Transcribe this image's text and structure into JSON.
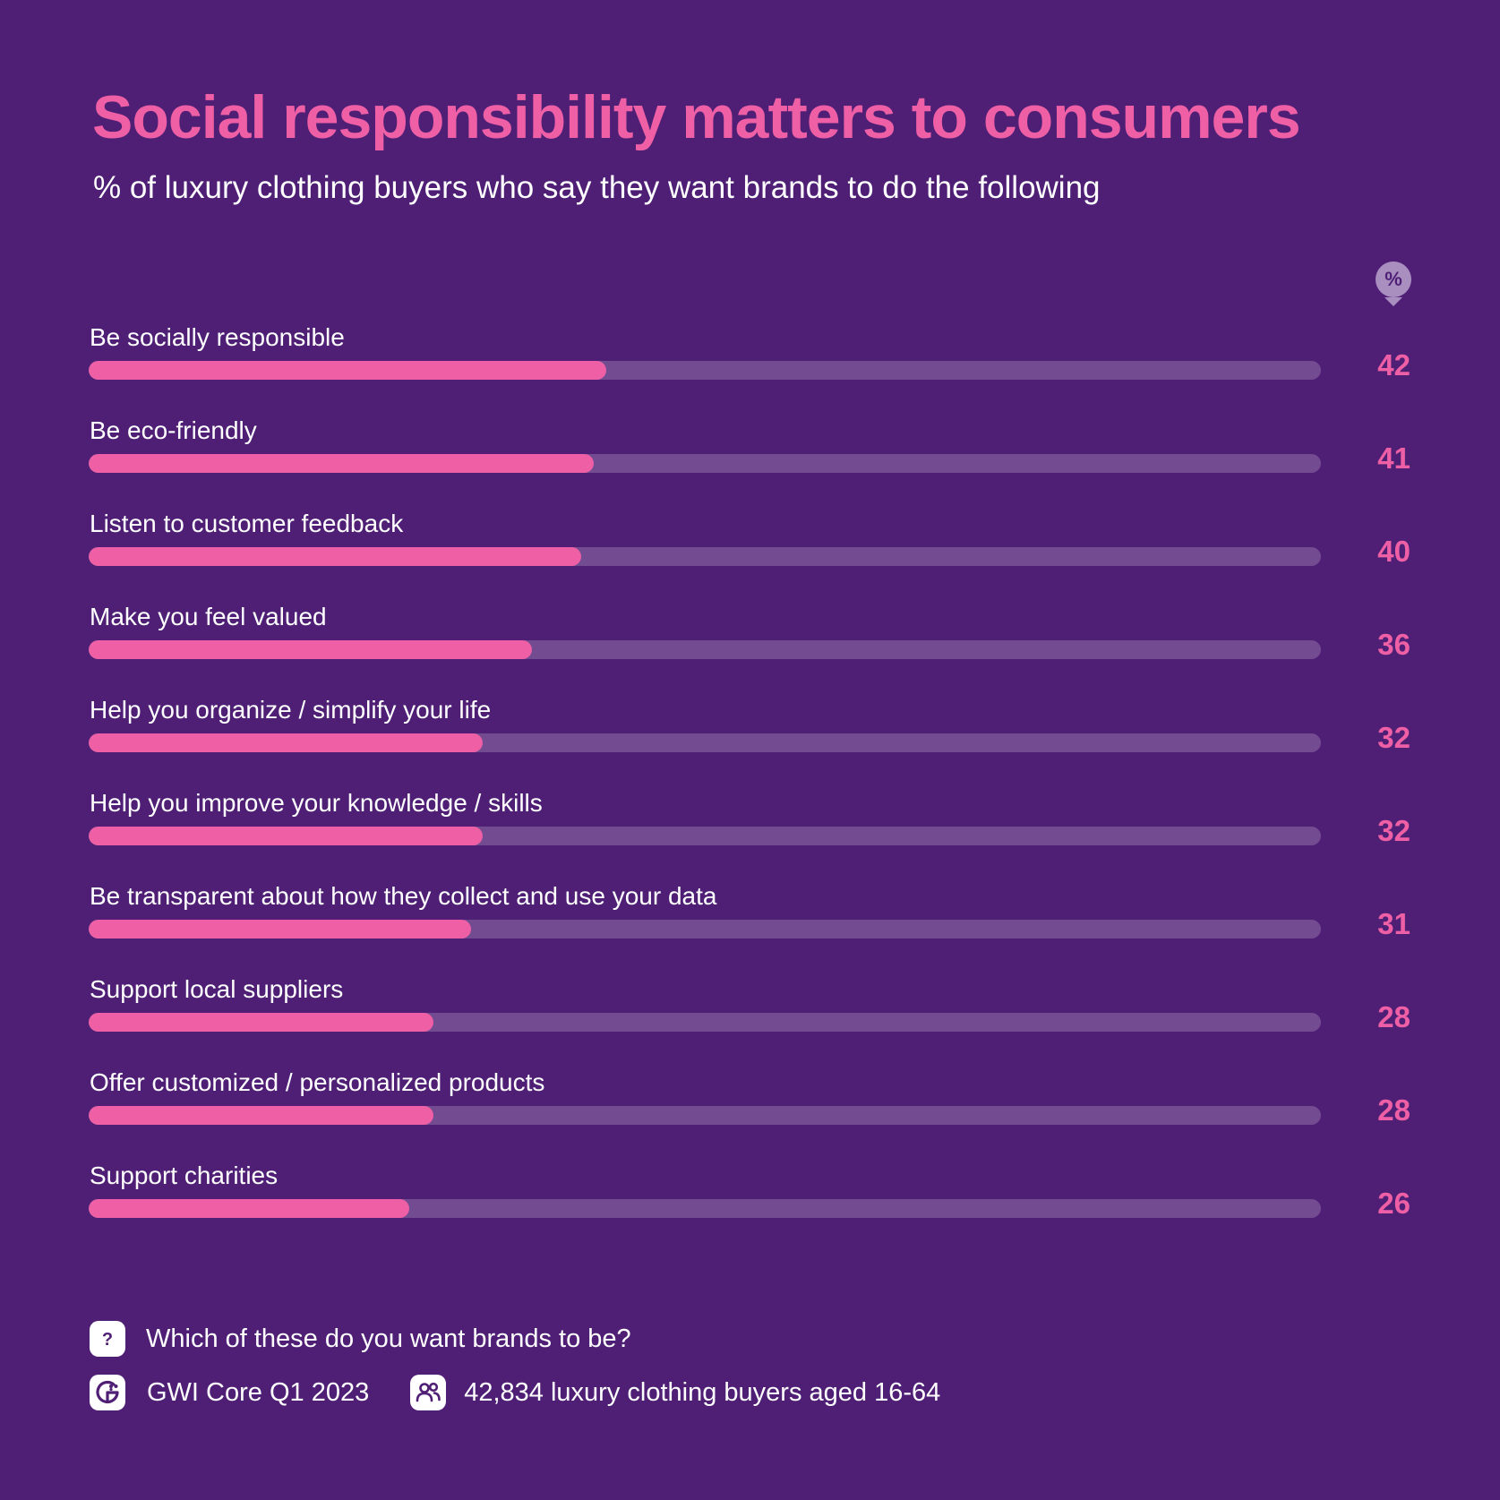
{
  "colors": {
    "background": "#4F1F76",
    "accent": "#EE5FA5",
    "text": "#FFFFFF",
    "track": "#734B91",
    "badge": "#A98FC0",
    "badge_text": "#4F1F76"
  },
  "header": {
    "title": "Social responsibility matters to consumers",
    "subtitle": "% of luxury clothing buyers who say they want brands to do the following"
  },
  "unit_badge": {
    "label": "%",
    "icon": "percent-pin-icon"
  },
  "chart_data": {
    "type": "bar",
    "orientation": "horizontal",
    "unit": "%",
    "xlim": [
      0,
      100
    ],
    "grid": false,
    "legend": "none",
    "categories": [
      "Be socially responsible",
      "Be eco-friendly",
      "Listen to customer feedback",
      "Make you feel valued",
      "Help you organize / simplify your life",
      "Help you improve your knowledge / skills",
      "Be transparent about how they collect and use your data",
      "Support local suppliers",
      "Offer customized / personalized products",
      "Support charities"
    ],
    "values": [
      42,
      41,
      40,
      36,
      32,
      32,
      31,
      28,
      28,
      26
    ],
    "value_labels": [
      "42",
      "41",
      "40",
      "36",
      "32",
      "32",
      "31",
      "28",
      "28",
      "26"
    ]
  },
  "footer": {
    "question": "Which of these do you want brands to be?",
    "question_icon": "question-icon",
    "source": "GWI Core Q1 2023",
    "source_icon": "gwi-logo-icon",
    "sample": "42,834 luxury clothing buyers aged 16-64",
    "sample_icon": "people-icon"
  }
}
